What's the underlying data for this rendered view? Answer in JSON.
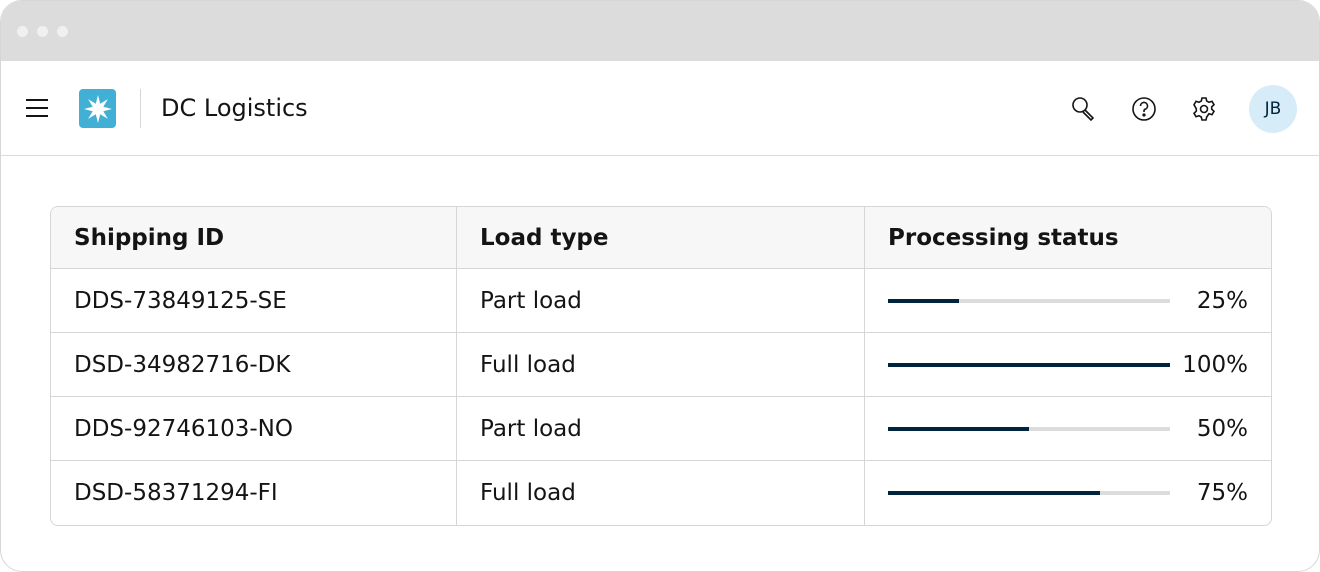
{
  "app": {
    "title": "DC Logistics",
    "user_initials": "JB",
    "logo_color": "#42b0d5",
    "accent": "#00243d"
  },
  "header_icons": [
    "menu-icon",
    "search-icon",
    "help-icon",
    "settings-icon"
  ],
  "table": {
    "columns": [
      "Shipping ID",
      "Load type",
      "Processing status"
    ],
    "rows": [
      {
        "id": "DDS-73849125-SE",
        "load": "Part load",
        "progress": 25,
        "label": "25%"
      },
      {
        "id": "DSD-34982716-DK",
        "load": "Full load",
        "progress": 100,
        "label": "100%"
      },
      {
        "id": "DDS-92746103-NO",
        "load": "Part load",
        "progress": 50,
        "label": "50%"
      },
      {
        "id": "DSD-58371294-FI",
        "load": "Full load",
        "progress": 75,
        "label": "75%"
      }
    ]
  }
}
